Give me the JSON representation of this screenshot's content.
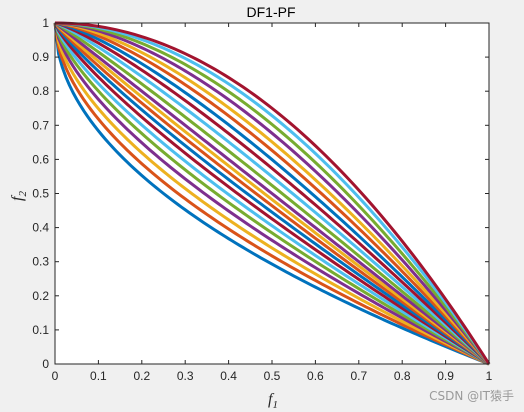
{
  "chart_data": {
    "type": "line",
    "title": "DF1-PF",
    "xlabel": "f",
    "xlabel_sub": "1",
    "ylabel": "f",
    "ylabel_sub": "2",
    "xlim": [
      0,
      1
    ],
    "ylim": [
      0,
      1
    ],
    "x_ticks": [
      "0",
      "0.1",
      "0.2",
      "0.3",
      "0.4",
      "0.5",
      "0.6",
      "0.7",
      "0.8",
      "0.9",
      "1"
    ],
    "y_ticks": [
      "0",
      "0.1",
      "0.2",
      "0.3",
      "0.4",
      "0.5",
      "0.6",
      "0.7",
      "0.8",
      "0.9",
      "1"
    ],
    "grid": false,
    "legend": false,
    "curve_family": "f2 = 1 - f1^H",
    "H_values": [
      0.5,
      0.55,
      0.6,
      0.65,
      0.7,
      0.75,
      0.8,
      0.85,
      0.9,
      0.95,
      1.0,
      1.07,
      1.15,
      1.23,
      1.32,
      1.42,
      1.52,
      1.63,
      1.75,
      1.88,
      2.0
    ],
    "series_colors": [
      "#0072BD",
      "#D95319",
      "#EDB120",
      "#7E2F8E",
      "#77AC30",
      "#4DBEEE",
      "#A2142F"
    ]
  },
  "watermark": "CSDN @IT猿手"
}
